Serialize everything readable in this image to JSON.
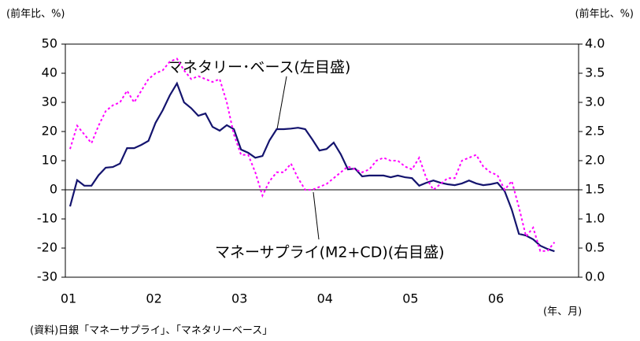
{
  "chart_data": {
    "type": "line",
    "y_label": "(前年比、%)",
    "y2_label": "(前年比、%)",
    "x_label": "(年、月)",
    "note": "(資料)日銀「マネーサプライ」、「マネタリーベース」",
    "annotations": [
      "マネタリー･ベース(左目盛)",
      "マネーサプライ(M2+CD)(右目盛)"
    ],
    "categories": [
      "01",
      null,
      null,
      null,
      null,
      null,
      null,
      null,
      null,
      null,
      null,
      null,
      "02",
      null,
      null,
      null,
      null,
      null,
      null,
      null,
      null,
      null,
      null,
      null,
      "03",
      null,
      null,
      null,
      null,
      null,
      null,
      null,
      null,
      null,
      null,
      null,
      "04",
      null,
      null,
      null,
      null,
      null,
      null,
      null,
      null,
      null,
      null,
      null,
      "05",
      null,
      null,
      null,
      null,
      null,
      null,
      null,
      null,
      null,
      null,
      null,
      "06",
      null,
      null,
      null,
      null,
      null,
      null,
      null,
      null
    ],
    "series": [
      {
        "name": "マネタリー･ベース",
        "color": "#14146e",
        "axis": "y",
        "values": [
          -5.7,
          3.3,
          1.4,
          1.4,
          5,
          7.6,
          7.8,
          9,
          14.3,
          14.3,
          15.4,
          16.8,
          23,
          27.3,
          32.4,
          36.5,
          30,
          28,
          25.4,
          26.2,
          21.6,
          20.3,
          22.2,
          20.8,
          13.8,
          12.7,
          11,
          11.6,
          17,
          20.8,
          20.8,
          21,
          21.3,
          20.8,
          17.3,
          13.5,
          14,
          16.2,
          12.2,
          7,
          7.3,
          4.6,
          4.9,
          4.9,
          4.9,
          4.3,
          4.9,
          4.3,
          4,
          1.4,
          2.4,
          3.2,
          2.4,
          1.9,
          1.6,
          2.2,
          3.2,
          2.2,
          1.6,
          1.9,
          2.4,
          -0.5,
          -6.8,
          -15.1,
          -15.7,
          -17,
          -19.2,
          -20.3,
          -21.1
        ]
      },
      {
        "name": "マネーサプライ(M2+CD)",
        "color": "#ff00ff",
        "axis": "y2",
        "values": [
          2.2,
          2.6,
          2.45,
          2.3,
          2.6,
          2.85,
          2.95,
          3,
          3.2,
          3,
          3.2,
          3.4,
          3.5,
          3.55,
          3.7,
          3.75,
          3.55,
          3.4,
          3.45,
          3.4,
          3.35,
          3.4,
          3,
          2.45,
          2.1,
          2.1,
          1.8,
          1.4,
          1.65,
          1.8,
          1.8,
          1.95,
          1.7,
          1.5,
          1.5,
          1.55,
          1.6,
          1.7,
          1.8,
          1.9,
          1.85,
          1.8,
          1.85,
          2,
          2.05,
          2,
          2,
          1.9,
          1.85,
          2.05,
          1.7,
          1.5,
          1.6,
          1.7,
          1.7,
          2,
          2.05,
          2.1,
          1.9,
          1.8,
          1.75,
          1.5,
          1.65,
          1.2,
          0.7,
          0.85,
          0.45,
          0.45,
          0.6
        ]
      }
    ],
    "ylim": [
      -30,
      50
    ],
    "yticks": [
      -30,
      -20,
      -10,
      0,
      10,
      20,
      30,
      40,
      50
    ],
    "y2lim": [
      0,
      4
    ],
    "y2ticks": [
      {
        "value": 0,
        "label": "0.0"
      },
      {
        "value": 0.5,
        "label": "0.5"
      },
      {
        "value": 1,
        "label": "1.0"
      },
      {
        "value": 1.5,
        "label": "1.5"
      },
      {
        "value": 2,
        "label": "2.0"
      },
      {
        "value": 2.5,
        "label": "2.5"
      },
      {
        "value": 3,
        "label": "3.0"
      },
      {
        "value": 3.5,
        "label": "3.5"
      },
      {
        "value": 4,
        "label": "4.0"
      }
    ]
  }
}
